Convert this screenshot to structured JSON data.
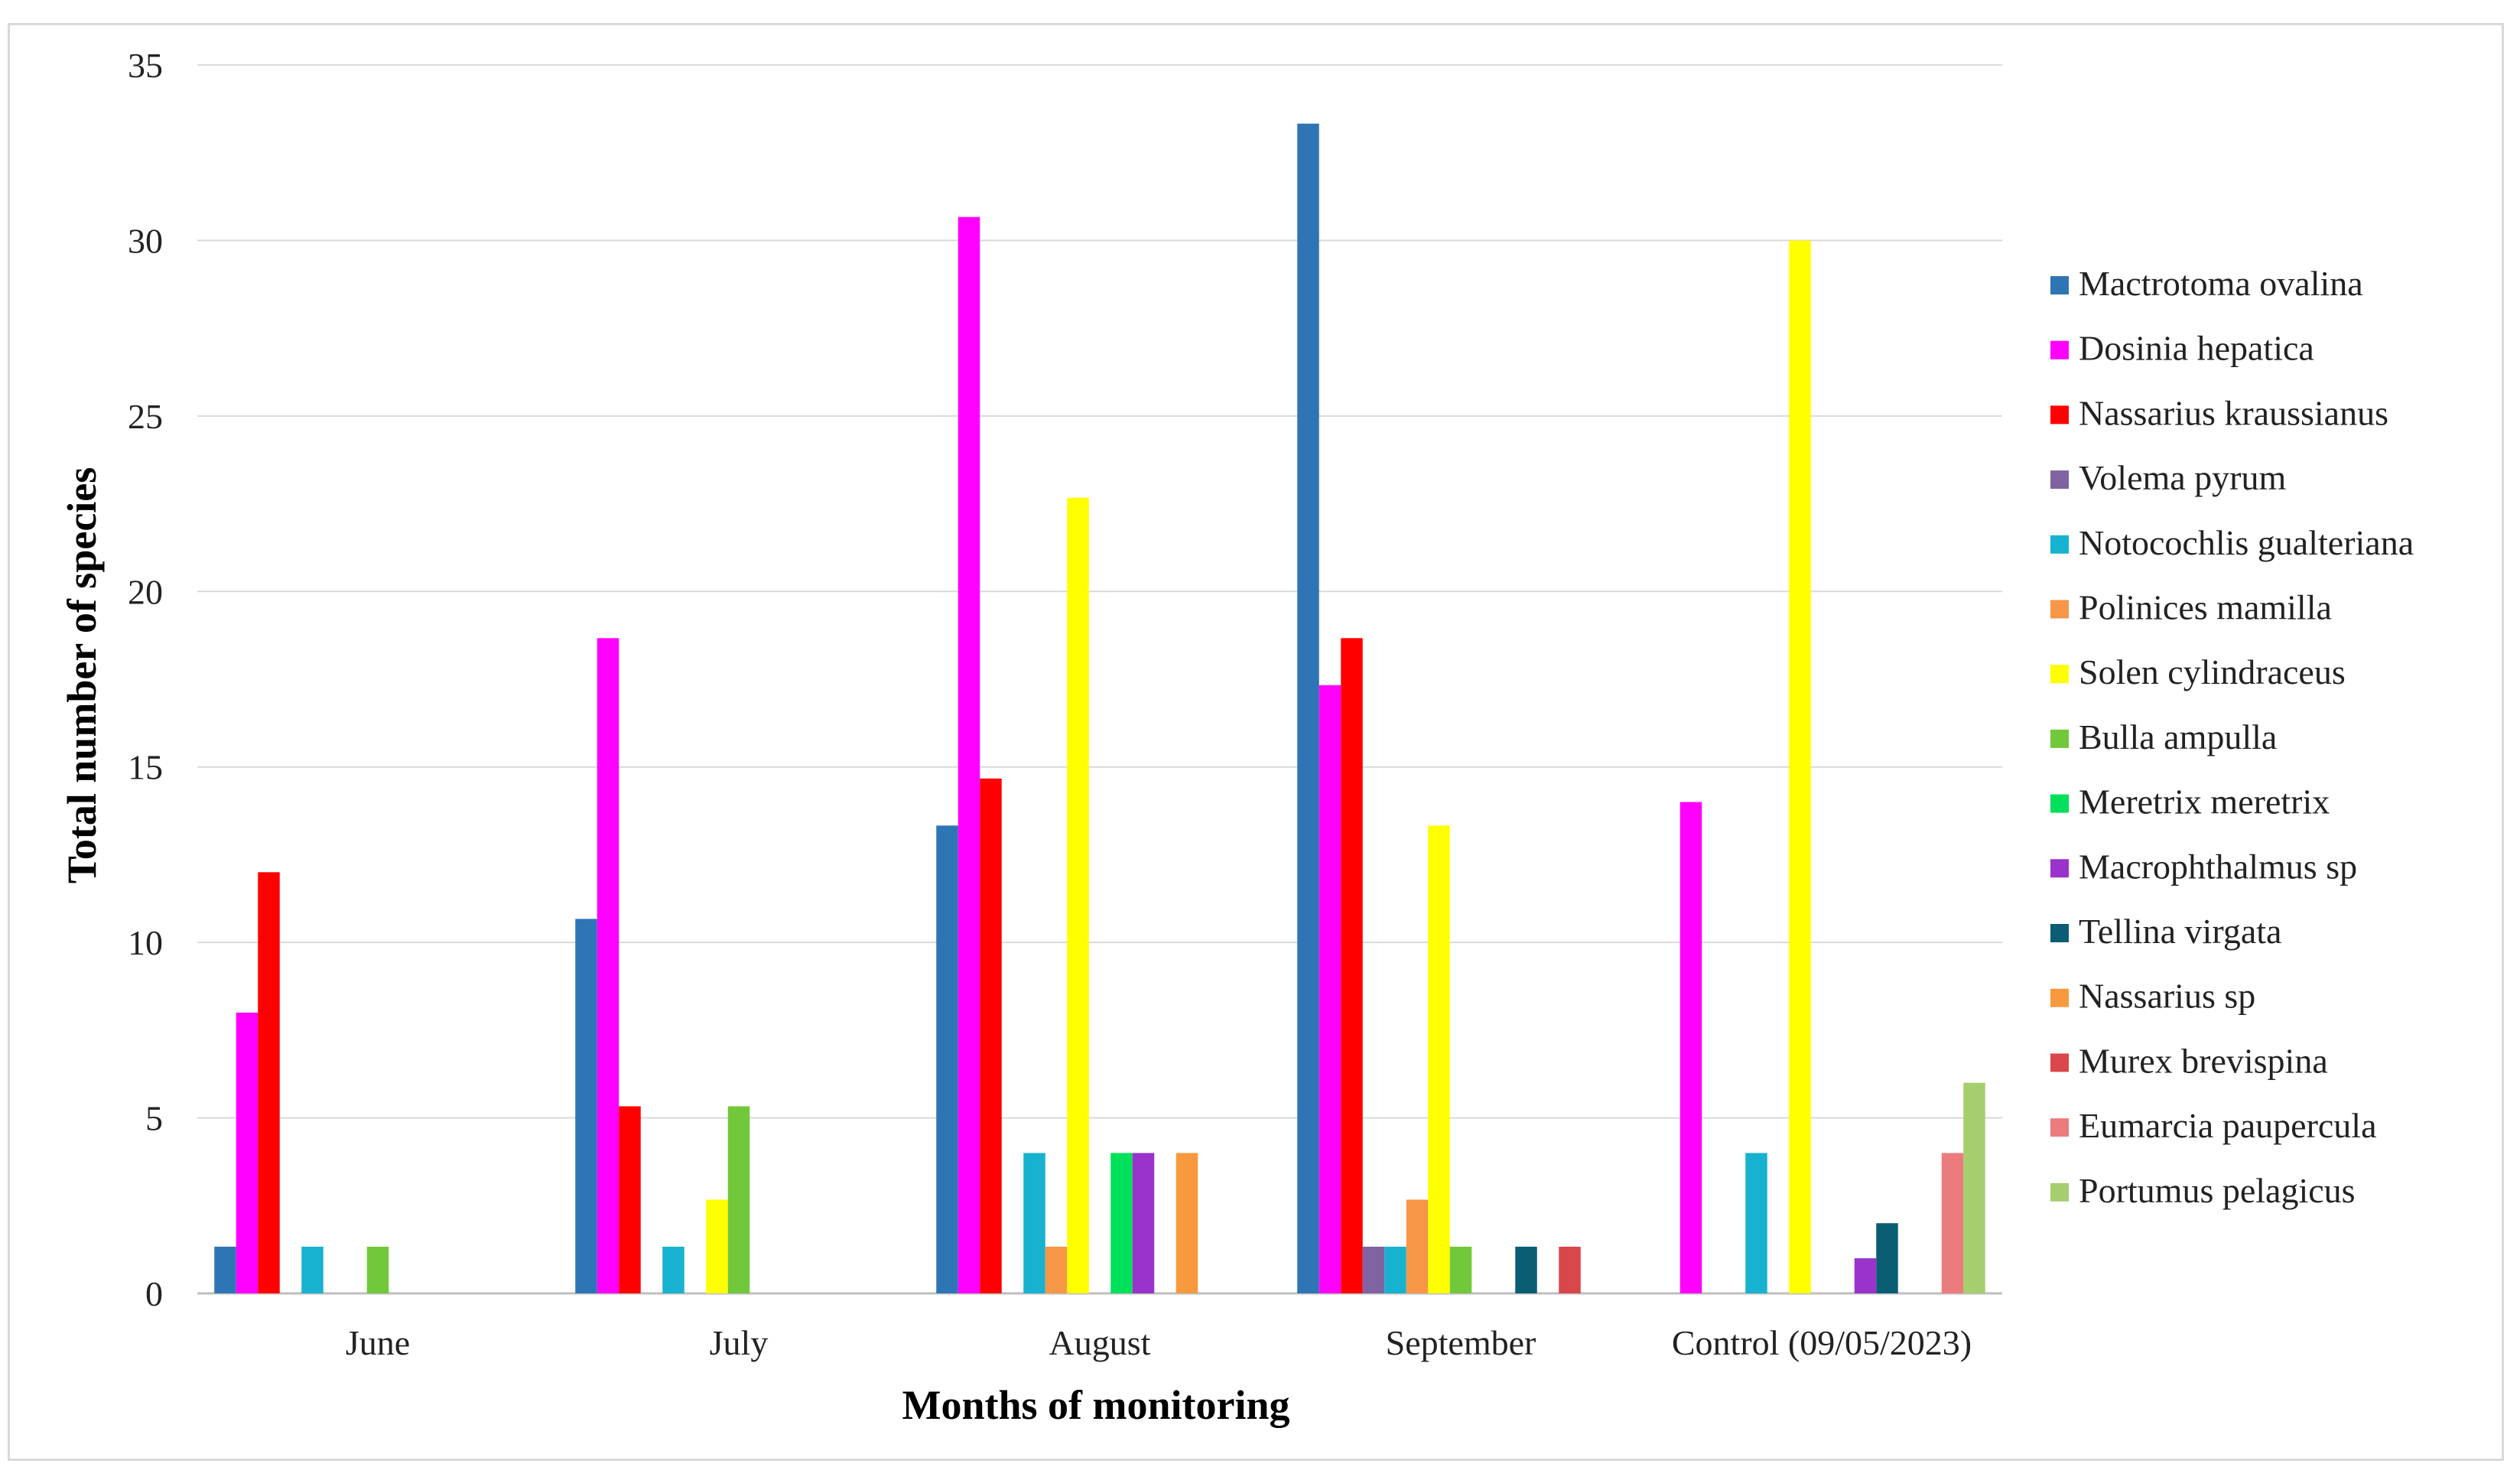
{
  "chart_data": {
    "type": "bar",
    "title": "",
    "xlabel": "Months of monitoring",
    "ylabel": "Total number of species",
    "ylim": [
      0,
      35
    ],
    "yticks": [
      "0",
      "5",
      "10",
      "15",
      "20",
      "25",
      "30",
      "35"
    ],
    "grid": true,
    "legend_position": "right",
    "categories": [
      "June",
      "July",
      "August",
      "September",
      "Control (09/05/2023)"
    ],
    "series": [
      {
        "name": "Mactrotoma ovalina",
        "color": "#2E75B6",
        "values": [
          1.33,
          10.67,
          13.33,
          33.33,
          0
        ]
      },
      {
        "name": "Dosinia hepatica",
        "color": "#FF00FF",
        "values": [
          8,
          18.67,
          30.67,
          17.33,
          14
        ]
      },
      {
        "name": "Nassarius kraussianus",
        "color": "#FF0000",
        "values": [
          12,
          5.33,
          14.67,
          18.67,
          0
        ]
      },
      {
        "name": "Volema pyrum",
        "color": "#8064A2",
        "values": [
          0,
          0,
          0,
          1.33,
          0
        ]
      },
      {
        "name": "Notocochlis gualteriana",
        "color": "#17B2CF",
        "values": [
          1.33,
          1.33,
          4,
          1.33,
          4
        ]
      },
      {
        "name": "Polinices mamilla",
        "color": "#F79646",
        "values": [
          0,
          0,
          1.33,
          2.67,
          0
        ]
      },
      {
        "name": "Solen cylindraceus",
        "color": "#FFFF00",
        "values": [
          0,
          2.67,
          22.67,
          13.33,
          30
        ]
      },
      {
        "name": "Bulla ampulla",
        "color": "#70C83A",
        "values": [
          1.33,
          5.33,
          0,
          1.33,
          0
        ]
      },
      {
        "name": "Meretrix meretrix",
        "color": "#00E05A",
        "values": [
          0,
          0,
          4,
          0,
          0
        ]
      },
      {
        "name": "Macrophthalmus sp",
        "color": "#9933CC",
        "values": [
          0,
          0,
          4,
          0,
          1
        ]
      },
      {
        "name": "Tellina virgata",
        "color": "#0B5D73",
        "values": [
          0,
          0,
          0,
          1.33,
          2
        ]
      },
      {
        "name": "Nassarius sp",
        "color": "#F9993D",
        "values": [
          0,
          0,
          4,
          0,
          0
        ]
      },
      {
        "name": "Murex brevispina",
        "color": "#D9474A",
        "values": [
          0,
          0,
          0,
          1.33,
          0
        ]
      },
      {
        "name": "Eumarcia paupercula",
        "color": "#EC7B7E",
        "values": [
          0,
          0,
          0,
          0,
          4
        ]
      },
      {
        "name": "Portumus pelagicus",
        "color": "#A5CE6E",
        "values": [
          0,
          0,
          0,
          0,
          6
        ]
      }
    ]
  }
}
